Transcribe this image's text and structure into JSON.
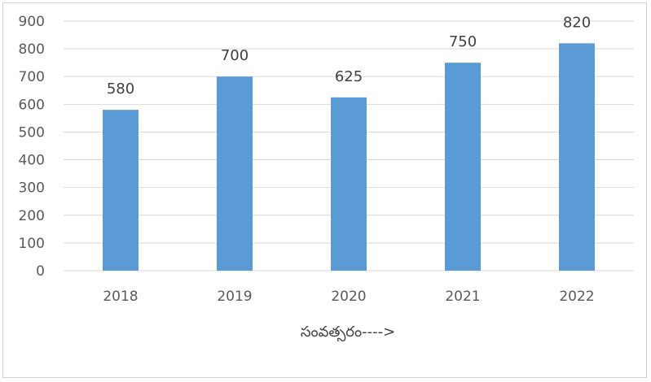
{
  "chart_data": {
    "type": "bar",
    "categories": [
      "2018",
      "2019",
      "2020",
      "2021",
      "2022"
    ],
    "values": [
      580,
      700,
      625,
      750,
      820
    ],
    "data_labels": [
      "580",
      "700",
      "625",
      "750",
      "820"
    ],
    "title": "",
    "xlabel": "సంవత్సరం---->",
    "ylabel": "",
    "ylim": [
      0,
      900
    ],
    "yticks": [
      "0",
      "100",
      "200",
      "300",
      "400",
      "500",
      "600",
      "700",
      "800",
      "900"
    ],
    "grid": true,
    "bar_color": "#5B9BD5",
    "grid_color": "#d9d9d9"
  }
}
